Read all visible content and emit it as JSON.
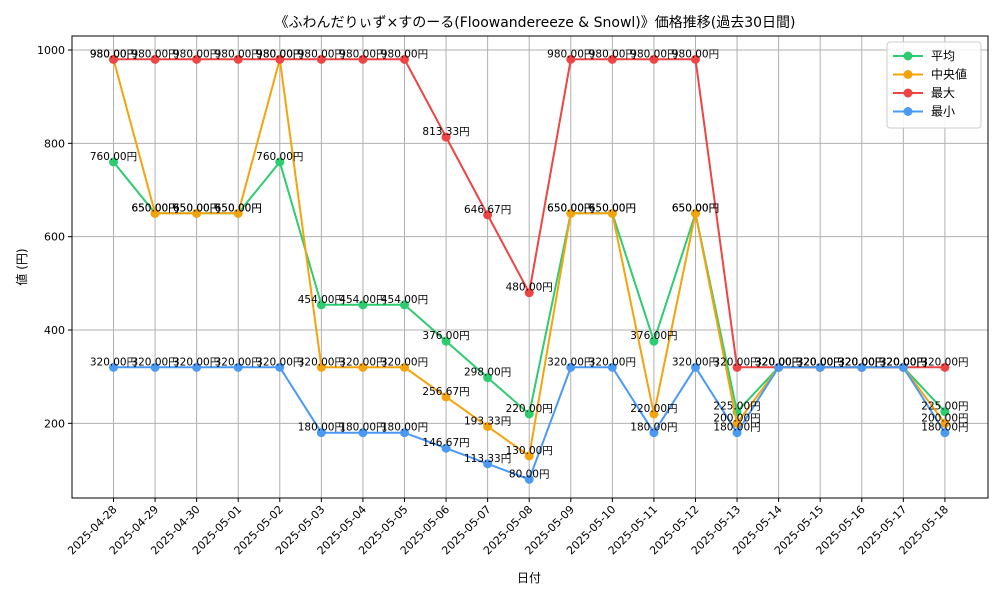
{
  "chart_data": {
    "type": "line",
    "title": "《ふわんだりぃず×すのーる(Floowandereeze & Snowl)》価格推移(過去30日間)",
    "xlabel": "日付",
    "ylabel": "値 (円)",
    "ylim": [
      40,
      1030
    ],
    "y_ticks": [
      200,
      400,
      600,
      800,
      1000
    ],
    "grid": true,
    "legend_position": "top-right",
    "categories": [
      "2025-04-28",
      "2025-04-29",
      "2025-04-30",
      "2025-05-01",
      "2025-05-02",
      "2025-05-03",
      "2025-05-04",
      "2025-05-05",
      "2025-05-06",
      "2025-05-07",
      "2025-05-08",
      "2025-05-09",
      "2025-05-10",
      "2025-05-11",
      "2025-05-12",
      "2025-05-13",
      "2025-05-14",
      "2025-05-15",
      "2025-05-16",
      "2025-05-17",
      "2025-05-18"
    ],
    "series": [
      {
        "name": "平均",
        "color": "#2ecc71",
        "values": [
          760,
          650,
          650,
          650,
          760,
          454,
          454,
          454,
          376,
          298,
          220,
          650,
          650,
          376,
          650,
          225,
          320,
          320,
          320,
          320,
          225
        ],
        "labels": [
          "760.00円",
          "650.00円",
          "650.00円",
          "650.00円",
          "760.00円",
          "454.00円",
          "454.00円",
          "454.00円",
          "376.00円",
          "298.00円",
          "220.00円",
          "650.00円",
          "650.00円",
          "376.00円",
          "650.00円",
          "225.00円",
          "320.00円",
          "320.00円",
          "320.00円",
          "320.00円",
          "225.00円"
        ]
      },
      {
        "name": "中央値",
        "color": "#f5a30b",
        "values": [
          980,
          650,
          650,
          650,
          980,
          320,
          320,
          320,
          256.67,
          193.33,
          130,
          650,
          650,
          220,
          650,
          200,
          320,
          320,
          320,
          320,
          200
        ],
        "labels": [
          "980.00円",
          "650.00円",
          "650.00円",
          "650.00円",
          "980.00円",
          "320.00円",
          "320.00円",
          "320.00円",
          "256.67円",
          "193.33円",
          "130.00円",
          "650.00円",
          "650.00円",
          "220.00円",
          "650.00円",
          "200.00円",
          "320.00円",
          "320.00円",
          "320.00円",
          "320.00円",
          "200.00円"
        ]
      },
      {
        "name": "最大",
        "color": "#ef4444",
        "values": [
          980,
          980,
          980,
          980,
          980,
          980,
          980,
          980,
          813.33,
          646.67,
          480,
          980,
          980,
          980,
          980,
          320,
          320,
          320,
          320,
          320,
          320
        ],
        "labels": [
          "980.00円",
          "980.00円",
          "980.00円",
          "980.00円",
          "980.00円",
          "980.00円",
          "980.00円",
          "980.00円",
          "813.33円",
          "646.67円",
          "480.00円",
          "980.00円",
          "980.00円",
          "980.00円",
          "980.00円",
          "320.00円",
          "320.00円",
          "320.00円",
          "320.00円",
          "320.00円",
          "320.00円"
        ]
      },
      {
        "name": "最小",
        "color": "#4a9af5",
        "values": [
          320,
          320,
          320,
          320,
          320,
          180,
          180,
          180,
          146.67,
          113.33,
          80,
          320,
          320,
          180,
          320,
          180,
          320,
          320,
          320,
          320,
          180
        ],
        "labels": [
          "320.00円",
          "320.00円",
          "320.00円",
          "320.00円",
          "320.00円",
          "180.00円",
          "180.00円",
          "180.00円",
          "146.67円",
          "113.33円",
          "80.00円",
          "320.00円",
          "320.00円",
          "180.00円",
          "320.00円",
          "180.00円",
          "320.00円",
          "320.00円",
          "320.00円",
          "320.00円",
          "180.00円"
        ]
      }
    ]
  }
}
